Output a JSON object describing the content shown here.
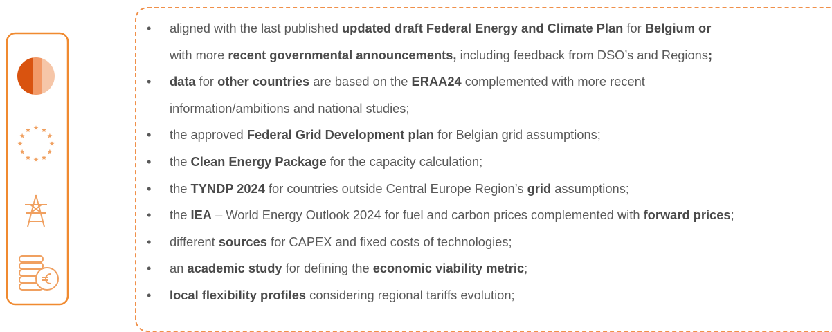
{
  "bullets": [
    {
      "lines": [
        [
          {
            "text": "aligned with the last published ",
            "bold": false
          },
          {
            "text": "updated draft Federal Energy and Climate Plan",
            "bold": true
          },
          {
            "text": " for ",
            "bold": false
          },
          {
            "text": "Belgium or",
            "bold": true
          }
        ],
        [
          {
            "text": "with more ",
            "bold": false
          },
          {
            "text": "recent governmental announcements,",
            "bold": true
          },
          {
            "text": " including feedback from DSO’s and Regions",
            "bold": false
          },
          {
            "text": ";",
            "bold": true
          }
        ]
      ]
    },
    {
      "lines": [
        [
          {
            "text": "data",
            "bold": true
          },
          {
            "text": " for ",
            "bold": false
          },
          {
            "text": "other countries",
            "bold": true
          },
          {
            "text": " are based on the ",
            "bold": false
          },
          {
            "text": "ERAA24",
            "bold": true
          },
          {
            "text": " complemented with more recent",
            "bold": false
          }
        ],
        [
          {
            "text": "information/ambitions and national studies;",
            "bold": false
          }
        ]
      ]
    },
    {
      "lines": [
        [
          {
            "text": "the approved ",
            "bold": false
          },
          {
            "text": "Federal Grid Development plan",
            "bold": true
          },
          {
            "text": " for Belgian grid assumptions;",
            "bold": false
          }
        ]
      ]
    },
    {
      "lines": [
        [
          {
            "text": "the ",
            "bold": false
          },
          {
            "text": "Clean Energy Package",
            "bold": true
          },
          {
            "text": " for the capacity calculation;",
            "bold": false
          }
        ]
      ]
    },
    {
      "lines": [
        [
          {
            "text": "the ",
            "bold": false
          },
          {
            "text": "TYNDP 2024",
            "bold": true
          },
          {
            "text": " for countries outside Central Europe Region’s ",
            "bold": false
          },
          {
            "text": "grid",
            "bold": true
          },
          {
            "text": " assumptions;",
            "bold": false
          }
        ]
      ]
    },
    {
      "lines": [
        [
          {
            "text": "the ",
            "bold": false
          },
          {
            "text": "IEA",
            "bold": true
          },
          {
            "text": " – World Energy Outlook 2024 for fuel and carbon prices complemented with ",
            "bold": false
          },
          {
            "text": "forward prices",
            "bold": true
          },
          {
            "text": ";",
            "bold": false
          }
        ]
      ]
    },
    {
      "lines": [
        [
          {
            "text": "different ",
            "bold": false
          },
          {
            "text": "sources",
            "bold": true
          },
          {
            "text": " for CAPEX and fixed costs of technologies;",
            "bold": false
          }
        ]
      ]
    },
    {
      "lines": [
        [
          {
            "text": "an ",
            "bold": false
          },
          {
            "text": "academic study",
            "bold": true
          },
          {
            "text": " for defining the ",
            "bold": false
          },
          {
            "text": "economic viability metric",
            "bold": true
          },
          {
            "text": ";",
            "bold": false
          }
        ]
      ]
    },
    {
      "lines": [
        [
          {
            "text": "local flexibility profiles",
            "bold": true
          },
          {
            "text": " considering regional tariffs evolution;",
            "bold": false
          }
        ]
      ]
    }
  ]
}
